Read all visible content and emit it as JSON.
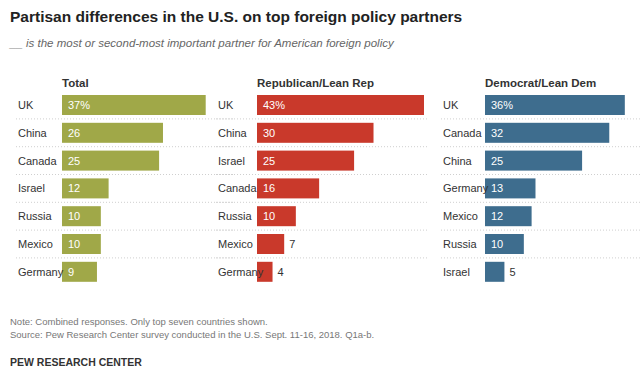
{
  "title": "Partisan differences in the U.S. on top foreign policy partners",
  "subtitle": "__ is the most or second-most important partner for American foreign policy",
  "note": "Note: Combined responses. Only top seven countries shown.",
  "source": "Source: Pew Research Center survey conducted in the U.S. Sept. 11-16, 2018. Q1a-b.",
  "credit": "PEW RESEARCH CENTER",
  "chart_data": [
    {
      "type": "bar",
      "orientation": "horizontal",
      "title": "Total",
      "categories": [
        "UK",
        "China",
        "Canada",
        "Israel",
        "Russia",
        "Mexico",
        "Germany"
      ],
      "values": [
        37,
        26,
        25,
        12,
        10,
        10,
        9
      ],
      "value_labels": [
        "37%",
        "26",
        "25",
        "12",
        "10",
        "10",
        "9"
      ],
      "color": "#a0a848",
      "xlim": [
        0,
        43
      ],
      "data_labels": true
    },
    {
      "type": "bar",
      "orientation": "horizontal",
      "title": "Republican/Lean Rep",
      "categories": [
        "UK",
        "China",
        "Israel",
        "Canada",
        "Russia",
        "Mexico",
        "Germany"
      ],
      "values": [
        43,
        30,
        25,
        16,
        10,
        7,
        4
      ],
      "value_labels": [
        "43%",
        "30",
        "25",
        "16",
        "10",
        "7",
        "4"
      ],
      "color": "#c9392b",
      "xlim": [
        0,
        43
      ],
      "data_labels": true
    },
    {
      "type": "bar",
      "orientation": "horizontal",
      "title": "Democrat/Lean Dem",
      "categories": [
        "UK",
        "Canada",
        "China",
        "Germany",
        "Mexico",
        "Russia",
        "Israel"
      ],
      "values": [
        36,
        32,
        25,
        13,
        12,
        10,
        5
      ],
      "value_labels": [
        "36%",
        "32",
        "25",
        "13",
        "12",
        "10",
        "5"
      ],
      "color": "#3e6d8e",
      "xlim": [
        0,
        43
      ],
      "data_labels": true
    }
  ]
}
